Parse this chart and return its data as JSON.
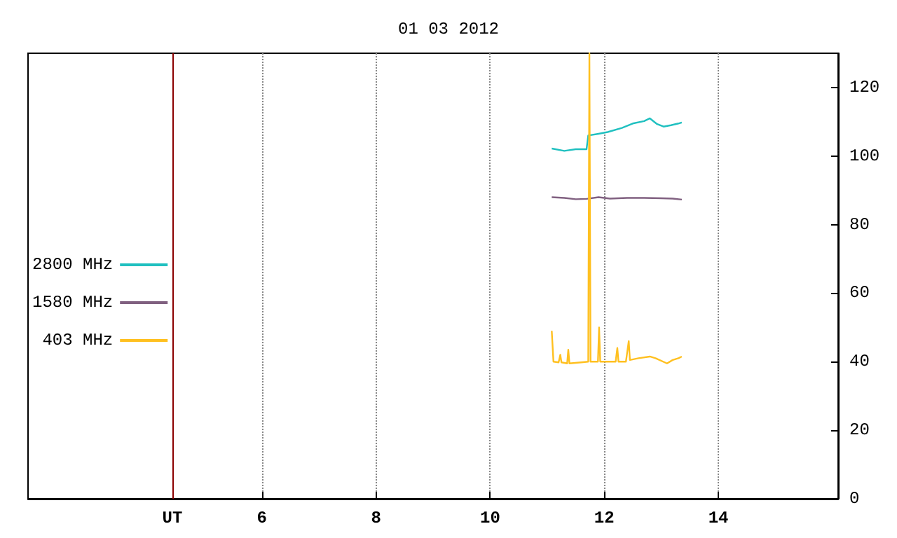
{
  "chart_data": {
    "type": "line",
    "title": "01 03 2012",
    "xlim": [
      1.9,
      16.1
    ],
    "xticks": [
      {
        "value": 4.43,
        "label": "UT"
      },
      6,
      8,
      10,
      12,
      14
    ],
    "ylim": [
      0,
      130
    ],
    "yticks": [
      0,
      20,
      40,
      60,
      80,
      100,
      120
    ],
    "grid": "x",
    "legend": "left",
    "marker": "none",
    "line_style": "solid",
    "ref_lines": [
      {
        "axis": "x",
        "value": 4.43,
        "label": null,
        "color": "#8b0000",
        "line_style": "solid"
      }
    ],
    "series": [
      {
        "name": "2800 MHz",
        "color": "#20c0c0",
        "x": [
          11.08,
          11.3,
          11.5,
          11.69,
          11.72,
          11.9,
          12.06,
          12.31,
          12.5,
          12.7,
          12.8,
          12.92,
          13.04,
          13.17,
          13.3,
          13.36
        ],
        "values": [
          102.2,
          101.5,
          102,
          102,
          106,
          106.5,
          107,
          108.2,
          109.5,
          110.2,
          111,
          109.4,
          108.6,
          109,
          109.5,
          109.8
        ]
      },
      {
        "name": "1580 MHz",
        "color": "#806080",
        "x": [
          11.08,
          11.3,
          11.5,
          11.69,
          11.9,
          12.1,
          12.4,
          12.7,
          13.0,
          13.2,
          13.36
        ],
        "values": [
          88,
          87.8,
          87.4,
          87.5,
          88,
          87.6,
          87.8,
          87.8,
          87.7,
          87.6,
          87.3
        ]
      },
      {
        "name": "403 MHz",
        "color": "#ffc020",
        "x": [
          11.08,
          11.09,
          11.11,
          11.2,
          11.23,
          11.25,
          11.35,
          11.37,
          11.39,
          11.6,
          11.72,
          11.74,
          11.76,
          11.89,
          11.91,
          11.93,
          12.2,
          12.23,
          12.25,
          12.38,
          12.43,
          12.45,
          12.6,
          12.8,
          12.9,
          13.1,
          13.2,
          13.3,
          13.36
        ],
        "values": [
          49,
          49,
          40,
          39.8,
          42,
          39.8,
          39.5,
          43.5,
          39.5,
          39.8,
          40,
          130,
          40,
          40,
          50,
          40,
          40,
          44,
          40,
          40,
          46,
          40.5,
          41,
          41.5,
          41,
          39.5,
          40.5,
          41,
          41.5
        ]
      }
    ]
  }
}
